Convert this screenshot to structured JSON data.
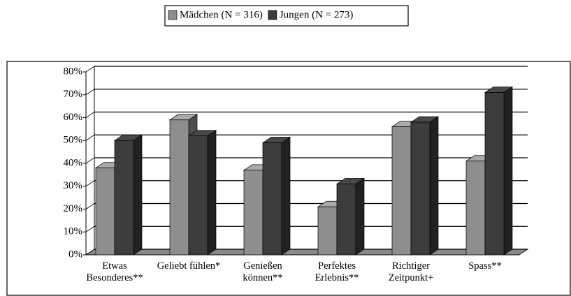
{
  "chart_data": {
    "type": "bar3d",
    "categories": [
      "Etwas Besonderes**",
      "Geliebt fühlen*",
      "Genießen können**",
      "Perfektes Erlebnis**",
      "Richtiger Zeitpunkt+",
      "Spass**"
    ],
    "series": [
      {
        "name": "Mädchen (N = 316)",
        "color": "#8e8e8e",
        "values": [
          38,
          59,
          37,
          21,
          56,
          41
        ]
      },
      {
        "name": "Jungen (N = 273)",
        "color": "#3c3c3c",
        "values": [
          50,
          52,
          49,
          31,
          58,
          71
        ]
      }
    ],
    "ylim": [
      0,
      80
    ],
    "yticks": [
      {
        "value": 0,
        "label": "0%"
      },
      {
        "value": 10,
        "label": "10%"
      },
      {
        "value": 20,
        "label": "20%"
      },
      {
        "value": 30,
        "label": "30%"
      },
      {
        "value": 40,
        "label": "40%"
      },
      {
        "value": 50,
        "label": "50%"
      },
      {
        "value": 60,
        "label": "60%"
      },
      {
        "value": 70,
        "label": "70%"
      },
      {
        "value": 80,
        "label": "80%"
      }
    ],
    "grid": true,
    "legend": "top"
  }
}
